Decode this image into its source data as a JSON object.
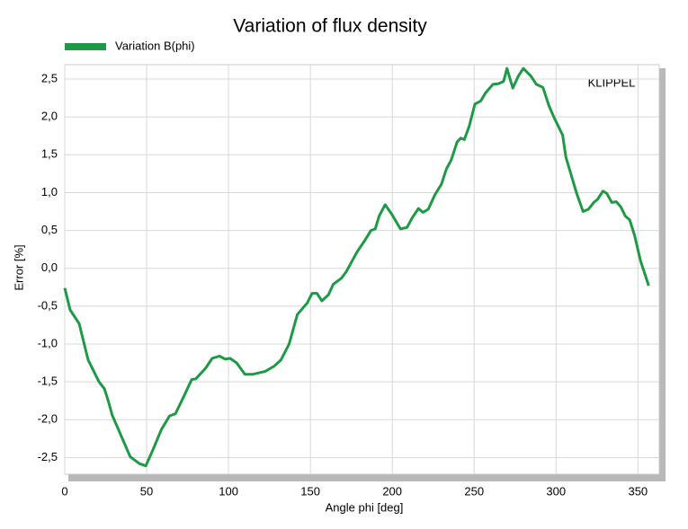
{
  "chart_data": {
    "type": "line",
    "title": "Variation of flux density",
    "xlabel": "Angle phi [deg]",
    "ylabel": "Error [%]",
    "annotation": "KLIPPEL",
    "xlim": [
      0,
      363
    ],
    "ylim": [
      -2.72,
      2.69
    ],
    "xticks": [
      0,
      50,
      100,
      150,
      200,
      250,
      300,
      350
    ],
    "yticks": [
      {
        "value": -2.5,
        "label": "-2,5"
      },
      {
        "value": -2,
        "label": "-2,0"
      },
      {
        "value": -1.5,
        "label": "-1,5"
      },
      {
        "value": -1,
        "label": "-1,0"
      },
      {
        "value": -0.5,
        "label": "-0,5"
      },
      {
        "value": 0,
        "label": "0,0"
      },
      {
        "value": 0.5,
        "label": "0,5"
      },
      {
        "value": 1,
        "label": "1,0"
      },
      {
        "value": 1.5,
        "label": "1,5"
      },
      {
        "value": 2,
        "label": "2,0"
      },
      {
        "value": 2.5,
        "label": "2,5"
      }
    ],
    "grid": true,
    "legend": "top-left",
    "series": [
      {
        "name": "Variation B(phi)",
        "color": "#1e9a46",
        "x": [
          0,
          3.3,
          8.8,
          14.3,
          20.9,
          24.2,
          26.4,
          29,
          35,
          40,
          45.6,
          49.5,
          54,
          59,
          64,
          67.6,
          73,
          77.5,
          80,
          86,
          90,
          94.5,
          98,
          101,
          105,
          110,
          115,
          122.5,
          128,
          132,
          137,
          142,
          148,
          151,
          154,
          157,
          161,
          164,
          169,
          172,
          178.6,
          183,
          187,
          189.6,
          192,
          195.6,
          199.5,
          205,
          209,
          212,
          216,
          218.7,
          222,
          226,
          230,
          233,
          236,
          239.6,
          241.8,
          244,
          247,
          250.5,
          254,
          257,
          261.5,
          265,
          268,
          270,
          273.6,
          277,
          280,
          284.6,
          288,
          292,
          295.6,
          299,
          304,
          306,
          309.3,
          312.6,
          316.5,
          319.8,
          323,
          325.3,
          328.6,
          331,
          334,
          336.8,
          339.6,
          342.3,
          345,
          348,
          351.6,
          356.6
        ],
        "values": [
          -0.26,
          -0.55,
          -0.73,
          -1.21,
          -1.5,
          -1.59,
          -1.74,
          -1.94,
          -2.24,
          -2.49,
          -2.58,
          -2.61,
          -2.39,
          -2.13,
          -1.95,
          -1.92,
          -1.68,
          -1.47,
          -1.46,
          -1.32,
          -1.19,
          -1.16,
          -1.2,
          -1.19,
          -1.25,
          -1.4,
          -1.4,
          -1.36,
          -1.29,
          -1.21,
          -1.0,
          -0.61,
          -0.46,
          -0.33,
          -0.33,
          -0.43,
          -0.35,
          -0.21,
          -0.13,
          -0.04,
          0.22,
          0.36,
          0.5,
          0.52,
          0.69,
          0.84,
          0.72,
          0.52,
          0.54,
          0.66,
          0.79,
          0.74,
          0.78,
          0.97,
          1.11,
          1.31,
          1.43,
          1.67,
          1.72,
          1.7,
          1.88,
          2.17,
          2.21,
          2.32,
          2.43,
          2.44,
          2.47,
          2.64,
          2.38,
          2.54,
          2.64,
          2.54,
          2.43,
          2.39,
          2.15,
          1.98,
          1.76,
          1.47,
          1.23,
          0.99,
          0.75,
          0.78,
          0.87,
          0.91,
          1.02,
          0.99,
          0.87,
          0.88,
          0.81,
          0.69,
          0.64,
          0.43,
          0.1,
          -0.23
        ]
      }
    ]
  }
}
